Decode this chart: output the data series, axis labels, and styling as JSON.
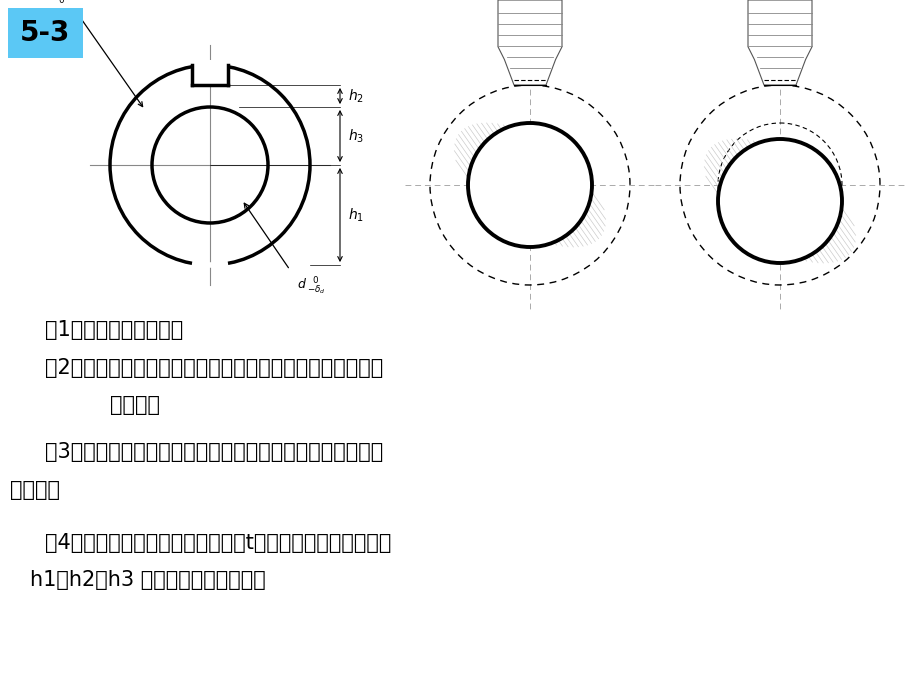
{
  "bg_color": "#ffffff",
  "label_color": "#5bc8f5",
  "title": "5-3",
  "line1": "（1）在可涨心轴上定位",
  "line2": "（2）在处于水平位置的刚性心轴上具有间隙定位，定位心轴",
  "line3": "直径已知",
  "line4": "（3）在处于垂直位置的刚性心轴上具有间隙定位，定位心轴",
  "line5": "直径已知",
  "line6": "（4）如果计及工件内外圆同轴度为t，上述三种定位方案中，",
  "line7": "h1、h2、h3 的定位误差各是多少？"
}
